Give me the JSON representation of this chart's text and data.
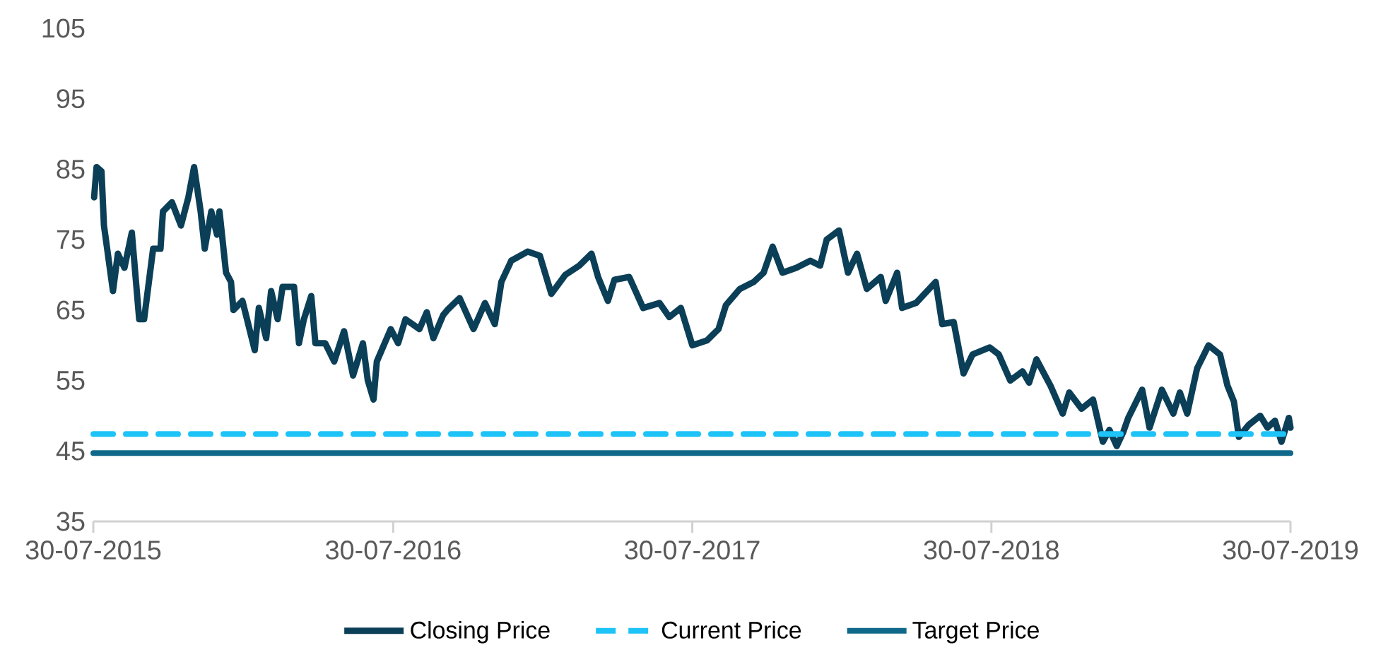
{
  "chart_data": {
    "type": "line",
    "x": [
      "2015-07-31",
      "2015-08-03",
      "2015-08-09",
      "2015-08-12",
      "2015-08-23",
      "2015-08-29",
      "2015-09-06",
      "2015-09-15",
      "2015-09-24",
      "2015-09-30",
      "2015-10-11",
      "2015-10-20",
      "2015-10-23",
      "2015-11-03",
      "2015-11-14",
      "2015-11-23",
      "2015-11-30",
      "2015-12-08",
      "2015-12-13",
      "2015-12-21",
      "2015-12-28",
      "2015-12-31",
      "2016-01-08",
      "2016-01-14",
      "2016-01-17",
      "2016-01-28",
      "2016-02-12",
      "2016-02-17",
      "2016-02-26",
      "2016-03-03",
      "2016-03-11",
      "2016-03-17",
      "2016-03-31",
      "2016-04-06",
      "2016-04-12",
      "2016-04-21",
      "2016-04-26",
      "2016-05-08",
      "2016-05-19",
      "2016-05-31",
      "2016-06-11",
      "2016-06-23",
      "2016-06-29",
      "2016-07-06",
      "2016-07-10",
      "2016-07-27",
      "2016-08-05",
      "2016-08-14",
      "2016-08-31",
      "2016-09-09",
      "2016-09-17",
      "2016-09-29",
      "2016-10-04",
      "2016-10-19",
      "2016-11-05",
      "2016-11-19",
      "2016-12-01",
      "2016-12-09",
      "2016-12-21",
      "2017-01-10",
      "2017-01-25",
      "2017-02-08",
      "2017-02-25",
      "2017-03-14",
      "2017-03-29",
      "2017-04-06",
      "2017-04-18",
      "2017-04-26",
      "2017-05-14",
      "2017-05-31",
      "2017-06-20",
      "2017-07-02",
      "2017-07-16",
      "2017-07-30",
      "2017-08-17",
      "2017-08-31",
      "2017-09-09",
      "2017-09-26",
      "2017-10-13",
      "2017-10-25",
      "2017-11-05",
      "2017-11-17",
      "2017-12-04",
      "2017-12-21",
      "2018-01-02",
      "2018-01-10",
      "2018-01-25",
      "2018-02-05",
      "2018-02-16",
      "2018-02-28",
      "2018-03-17",
      "2018-03-23",
      "2018-04-06",
      "2018-04-12",
      "2018-04-29",
      "2018-05-23",
      "2018-05-31",
      "2018-06-14",
      "2018-06-26",
      "2018-07-07",
      "2018-07-28",
      "2018-08-08",
      "2018-08-22",
      "2018-09-06",
      "2018-09-14",
      "2018-09-23",
      "2018-10-10",
      "2018-10-25",
      "2018-11-02",
      "2018-11-17",
      "2018-12-01",
      "2018-12-13",
      "2018-12-21",
      "2018-12-30",
      "2019-01-07",
      "2019-01-13",
      "2019-01-30",
      "2019-02-08",
      "2019-02-23",
      "2019-03-09",
      "2019-03-17",
      "2019-03-26",
      "2019-04-07",
      "2019-04-21",
      "2019-05-05",
      "2019-05-14",
      "2019-05-22",
      "2019-05-28",
      "2019-06-09",
      "2019-06-23",
      "2019-07-02",
      "2019-07-11",
      "2019-07-19",
      "2019-07-28",
      "2019-07-30"
    ],
    "series": [
      {
        "name": "Closing Price",
        "color": "#0b3f57",
        "line_style": "solid",
        "values": [
          81,
          85.3,
          84.7,
          77,
          67.7,
          73,
          71,
          76,
          63.7,
          63.7,
          73.7,
          73.7,
          79,
          80.3,
          77,
          81,
          85.3,
          79,
          73.7,
          79,
          75.7,
          79,
          70.3,
          69,
          65,
          66.3,
          59.3,
          65.3,
          61,
          67.7,
          63.7,
          68.3,
          68.3,
          60.3,
          63.7,
          67,
          60.3,
          60.3,
          57.7,
          62,
          55.7,
          60.3,
          55,
          52.3,
          57.7,
          62.3,
          60.3,
          63.7,
          62.3,
          64.7,
          61,
          64.3,
          65,
          66.7,
          62.3,
          66,
          63,
          69,
          72,
          73.3,
          72.7,
          67.3,
          70,
          71.3,
          73,
          69.7,
          66.3,
          69.3,
          69.7,
          65.3,
          66,
          64,
          65.3,
          60,
          60.7,
          62.3,
          65.7,
          68,
          69,
          70.3,
          74,
          70.3,
          71,
          72,
          71.3,
          75,
          76.3,
          70.3,
          73,
          68,
          69.7,
          66.3,
          70.3,
          65.3,
          66,
          69,
          63,
          63.3,
          56,
          58.7,
          59.7,
          58.7,
          55,
          56.3,
          54.7,
          58,
          54.3,
          50.3,
          53.3,
          51,
          52.3,
          46.3,
          48,
          45.7,
          47.7,
          49.7,
          53.7,
          48.3,
          53.7,
          50.3,
          53.3,
          50.3,
          56.7,
          60,
          58.7,
          54.3,
          52,
          47,
          48.7,
          50,
          48.3,
          49.3,
          46.3,
          49.7,
          48.3
        ]
      },
      {
        "name": "Current Price",
        "color": "#1ec3f7",
        "line_style": "dashed",
        "x": [
          "2015-07-30",
          "2019-07-30"
        ],
        "values": [
          47.4,
          47.4
        ]
      },
      {
        "name": "Target Price",
        "color": "#10698a",
        "line_style": "solid",
        "x": [
          "2015-07-30",
          "2019-07-30"
        ],
        "values": [
          44.7,
          44.7
        ]
      }
    ],
    "xlim": [
      "2015-07-30",
      "2019-07-30"
    ],
    "xticks": [
      {
        "value": "2015-07-30",
        "label": "30-07-2015"
      },
      {
        "value": "2016-07-30",
        "label": "30-07-2016"
      },
      {
        "value": "2017-07-30",
        "label": "30-07-2017"
      },
      {
        "value": "2018-07-30",
        "label": "30-07-2018"
      },
      {
        "value": "2019-07-30",
        "label": "30-07-2019"
      }
    ],
    "ylim": [
      35,
      105
    ],
    "yticks": [
      35,
      45,
      55,
      65,
      75,
      85,
      95,
      105
    ],
    "legend": "bottom"
  }
}
